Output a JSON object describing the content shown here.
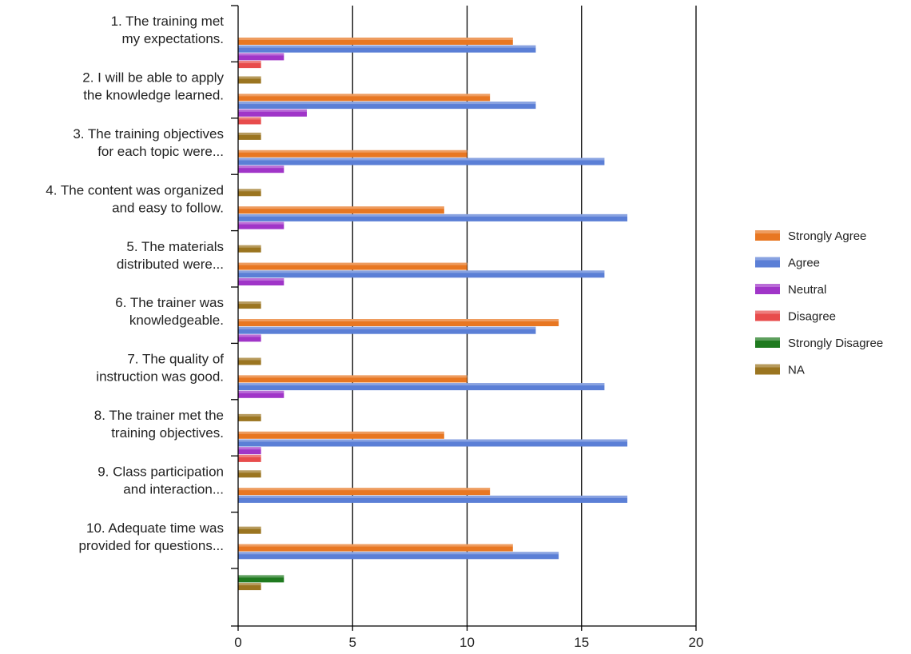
{
  "chart_data": {
    "type": "bar",
    "orientation": "horizontal",
    "categories": [
      [
        "1. The training met",
        "my expectations."
      ],
      [
        "2. I will be able to apply",
        "the knowledge learned."
      ],
      [
        "3. The training objectives",
        "for each topic were..."
      ],
      [
        "4. The content was organized",
        "and easy to follow."
      ],
      [
        "5. The materials",
        "distributed were..."
      ],
      [
        "6. The trainer was",
        "knowledgeable."
      ],
      [
        "7. The quality of",
        "instruction was good."
      ],
      [
        "8. The trainer met the",
        "training objectives."
      ],
      [
        "9. Class participation",
        "and interaction..."
      ],
      [
        "10. Adequate time was",
        "provided for questions..."
      ]
    ],
    "series": [
      {
        "name": "Strongly Agree",
        "color": "#e87722",
        "values": [
          12,
          11,
          10,
          9,
          10,
          14,
          10,
          9,
          11,
          12
        ]
      },
      {
        "name": "Agree",
        "color": "#5b7fd6",
        "values": [
          13,
          13,
          16,
          17,
          16,
          13,
          16,
          17,
          17,
          14
        ]
      },
      {
        "name": "Neutral",
        "color": "#a035c8",
        "values": [
          2,
          3,
          2,
          2,
          2,
          1,
          2,
          1,
          0,
          0
        ]
      },
      {
        "name": "Disagree",
        "color": "#e84c4c",
        "values": [
          1,
          1,
          0,
          0,
          0,
          0,
          0,
          1,
          0,
          0
        ]
      },
      {
        "name": "Strongly Disagree",
        "color": "#1f7a1f",
        "values": [
          0,
          0,
          0,
          0,
          0,
          0,
          0,
          0,
          0,
          2
        ]
      },
      {
        "name": "NA",
        "color": "#9b7520",
        "values": [
          1,
          1,
          1,
          1,
          1,
          1,
          1,
          1,
          1,
          1
        ]
      }
    ],
    "xlim": [
      0,
      20
    ],
    "ticks": [
      "0",
      "5",
      "10",
      "15",
      "20"
    ],
    "grid": true,
    "legend_position": "right",
    "title": "",
    "xlabel": "",
    "ylabel": ""
  }
}
